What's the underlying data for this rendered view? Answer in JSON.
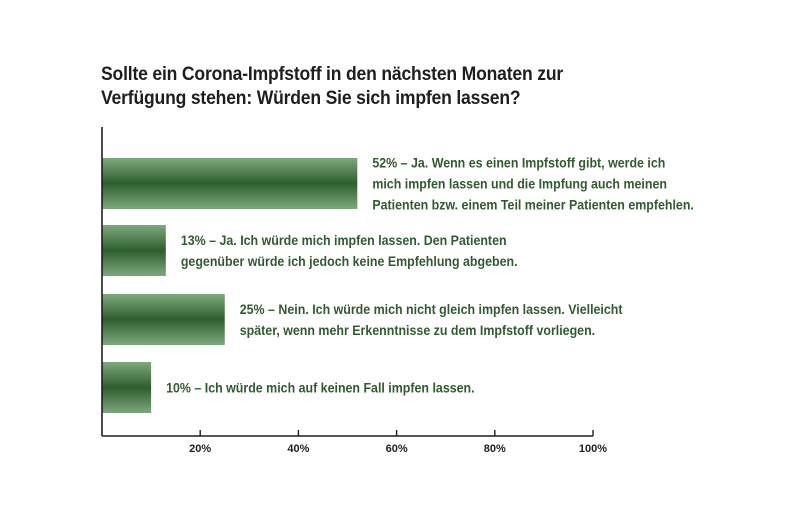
{
  "title_lines": [
    "Sollte ein Corona-Impfstoff in den nächsten Monaten zur",
    "Verfügung stehen: Würden Sie sich impfen lassen?"
  ],
  "colors": {
    "bar_dark": "#2e5e2e",
    "bar_light": "#7ca97c",
    "label_text": "#2f5b2f",
    "axis": "#1e1e1e"
  },
  "chart_data": {
    "type": "bar",
    "orientation": "horizontal",
    "title": "Sollte ein Corona-Impfstoff in den nächsten Monaten zur Verfügung stehen: Würden Sie sich impfen lassen?",
    "categories": [
      "Ja. Wenn es einen Impfstoff gibt, werde ich mich impfen lassen und die Impfung auch meinen Patienten bzw. einem Teil meiner Patienten empfehlen.",
      "Ja. Ich würde mich impfen lassen. Den Patienten gegenüber würde ich jedoch keine Empfehlung abgeben.",
      "Nein. Ich würde mich nicht gleich impfen lassen. Vielleicht später, wenn mehr Erkenntnisse zu dem Impfstoff vorliegen.",
      "Ich würde mich auf keinen Fall impfen lassen."
    ],
    "values": [
      52,
      13,
      25,
      10
    ],
    "value_unit": "%",
    "xlim": [
      0,
      100
    ],
    "xticks": [
      20,
      40,
      60,
      80,
      100
    ],
    "xtick_labels": [
      "20%",
      "40%",
      "60%",
      "80%",
      "100%"
    ],
    "data_labels": [
      [
        "52% – Ja. Wenn es einen Impfstoff gibt, werde ich",
        "mich impfen lassen und die Impfung auch meinen",
        "Patienten bzw. einem Teil meiner Patienten empfehlen."
      ],
      [
        "13% – Ja. Ich würde mich impfen lassen. Den Patienten",
        "gegenüber würde ich jedoch keine Empfehlung abgeben."
      ],
      [
        "25% – Nein. Ich würde mich nicht gleich impfen lassen. Vielleicht",
        "später, wenn mehr Erkenntnisse zu dem Impfstoff vorliegen."
      ],
      [
        "10% – Ich würde mich auf keinen Fall impfen lassen."
      ]
    ],
    "grid": false,
    "legend": "none"
  }
}
